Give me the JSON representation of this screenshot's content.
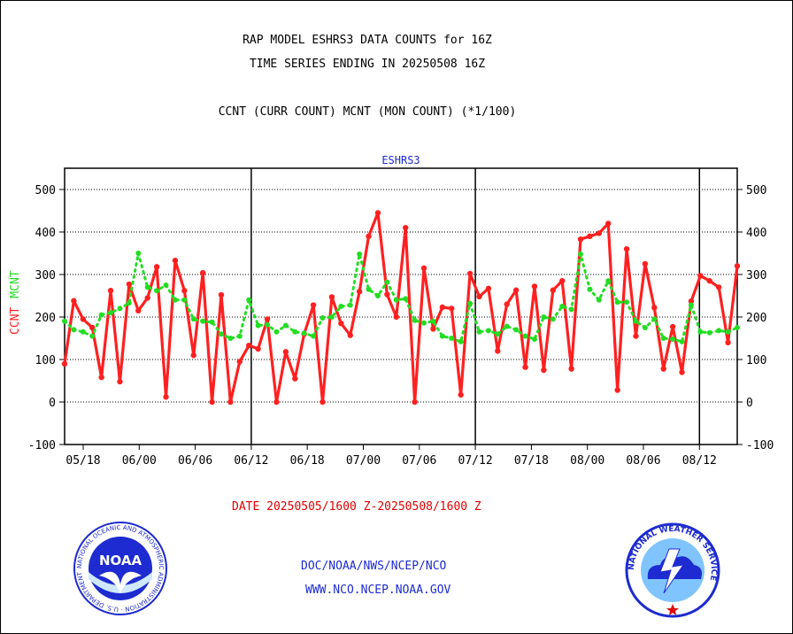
{
  "header": {
    "line1": "RAP MODEL ESHRS3 DATA COUNTS for 16Z",
    "line2": "TIME SERIES ENDING IN 20250508 16Z",
    "line3": "CCNT (CURR COUNT) MCNT (MON COUNT) (*1/100)"
  },
  "footer": {
    "date_range": "DATE 20250505/1600 Z-20250508/1600 Z",
    "org": "DOC/NOAA/NWS/NCEP/NCO",
    "url": "WWW.NCO.NCEP.NOAA.GOV"
  },
  "logos": {
    "noaa_text": "NOAA",
    "noaa_ring": "NATIONAL OCEANIC AND ATMOSPHERIC ADMINISTRATION · U.S. DEPARTMENT OF COMMERCE",
    "nws_ring": "NATIONAL WEATHER SERVICE"
  },
  "colors": {
    "ccnt": "#ff2020",
    "mcnt": "#22dd22",
    "label_blue": "#1d2bd0",
    "grid": "#000000"
  },
  "chart_data": {
    "type": "line",
    "title": "ESHRS3",
    "ylabel_parts": [
      {
        "text": "CCNT",
        "color": "#ff2020"
      },
      {
        "text": "MCNT",
        "color": "#22dd22"
      }
    ],
    "ylim": [
      -100,
      550
    ],
    "yticks": [
      -100,
      0,
      100,
      200,
      300,
      400,
      500
    ],
    "grid_y": true,
    "xticks": [
      "05/18",
      "06/00",
      "06/06",
      "06/12",
      "06/18",
      "07/00",
      "07/06",
      "07/12",
      "07/18",
      "08/00",
      "08/06",
      "08/12"
    ],
    "day_boundaries": [
      "06/12",
      "07/12",
      "08/12"
    ],
    "series": [
      {
        "name": "CCNT",
        "color": "#ff2020",
        "values": [
          90,
          238,
          195,
          175,
          58,
          262,
          48,
          277,
          215,
          245,
          318,
          12,
          333,
          262,
          110,
          304,
          0,
          252,
          0,
          95,
          133,
          125,
          195,
          0,
          118,
          55,
          160,
          228,
          0,
          247,
          185,
          157,
          260,
          390,
          445,
          253,
          200,
          410,
          0,
          315,
          172,
          223,
          220,
          17,
          302,
          248,
          267,
          120,
          230,
          263,
          82,
          272,
          75,
          263,
          285,
          78,
          383,
          390,
          397,
          420,
          28,
          360,
          155,
          325,
          222,
          78,
          177,
          70,
          237,
          297,
          285,
          270,
          140,
          320
        ]
      },
      {
        "name": "MCNT",
        "color": "#22dd22",
        "values": [
          190,
          170,
          165,
          155,
          205,
          210,
          220,
          233,
          350,
          270,
          262,
          275,
          240,
          240,
          195,
          190,
          188,
          160,
          150,
          155,
          240,
          180,
          182,
          165,
          180,
          165,
          162,
          155,
          198,
          200,
          225,
          228,
          348,
          265,
          250,
          282,
          240,
          243,
          192,
          186,
          190,
          155,
          150,
          142,
          232,
          165,
          168,
          160,
          178,
          170,
          155,
          148,
          200,
          195,
          225,
          218,
          348,
          265,
          240,
          285,
          235,
          235,
          190,
          175,
          195,
          150,
          148,
          142,
          228,
          165,
          163,
          168,
          165,
          175
        ]
      }
    ]
  }
}
